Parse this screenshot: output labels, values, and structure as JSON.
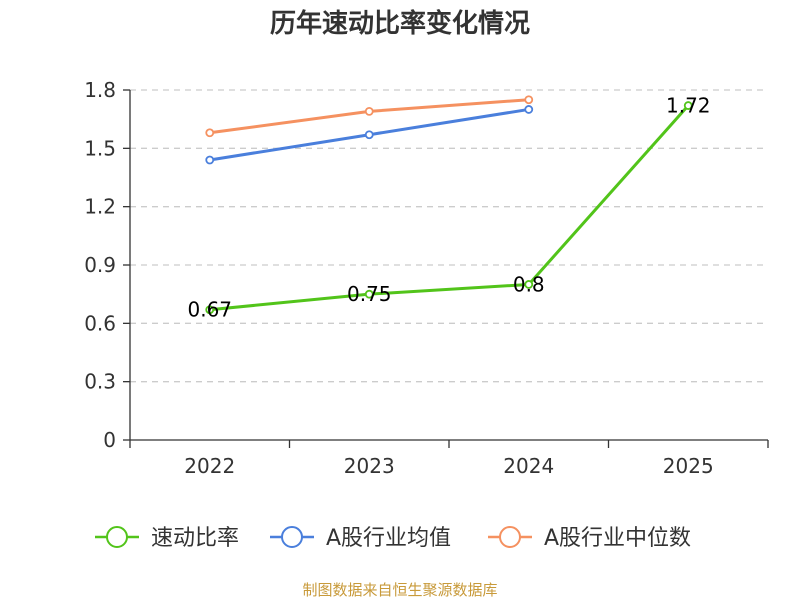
{
  "chart_data": {
    "type": "line",
    "title": "历年速动比率变化情况",
    "categories": [
      "2022",
      "2023",
      "2024",
      "2025"
    ],
    "ylim": [
      0,
      1.8
    ],
    "yticks": [
      "0",
      "0.3",
      "0.6",
      "0.9",
      "1.2",
      "1.5",
      "1.8"
    ],
    "grid": true,
    "legend_position": "bottom",
    "series": [
      {
        "name": "速动比率",
        "color": "#52c41a",
        "values": [
          0.67,
          0.75,
          0.8,
          1.72
        ],
        "labels": [
          "0.67",
          "0.75",
          "0.8",
          "1.72"
        ],
        "show_labels": true
      },
      {
        "name": "A股行业均值",
        "color": "#4a7fdc",
        "values": [
          1.44,
          1.57,
          1.7,
          null
        ],
        "show_labels": false
      },
      {
        "name": "A股行业中位数",
        "color": "#f59160",
        "values": [
          1.58,
          1.69,
          1.75,
          null
        ],
        "show_labels": false
      }
    ]
  },
  "source": {
    "text": "制图数据来自恒生聚源数据库",
    "color": "#c89a3a"
  }
}
